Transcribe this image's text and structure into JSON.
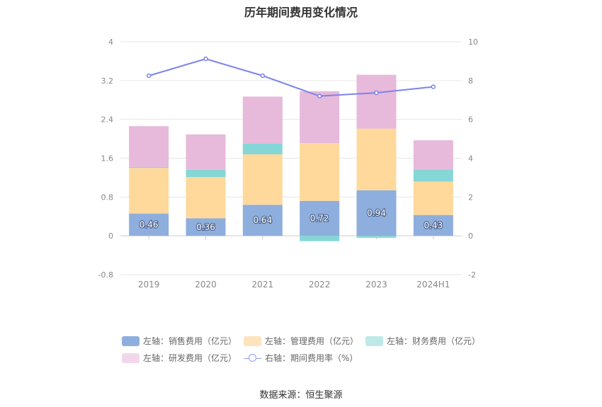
{
  "chart_data": {
    "type": "bar",
    "title": "历年期间费用变化情况",
    "categories": [
      "2019",
      "2020",
      "2021",
      "2022",
      "2023",
      "2024H1"
    ],
    "left_axis": {
      "ticks": [
        "-0.8",
        "0",
        "0.8",
        "1.6",
        "2.4",
        "3.2",
        "4"
      ],
      "ylim": [
        -0.8,
        4
      ]
    },
    "right_axis": {
      "ticks": [
        "-2",
        "0",
        "2",
        "4",
        "6",
        "8",
        "10"
      ],
      "ylim": [
        -2,
        10
      ]
    },
    "series": [
      {
        "name": "左轴：销售费用（亿元）",
        "kind": "bar",
        "color": "#8eaedd",
        "values": [
          0.46,
          0.36,
          0.64,
          0.72,
          0.94,
          0.43
        ],
        "labels": [
          "0.46",
          "0.36",
          "0.64",
          "0.72",
          "0.94",
          "0.43"
        ]
      },
      {
        "name": "左轴：管理费用（亿元）",
        "kind": "bar",
        "color": "#fed99b",
        "values": [
          0.94,
          0.85,
          1.04,
          1.19,
          1.27,
          0.69
        ]
      },
      {
        "name": "左轴：财务费用（亿元）",
        "kind": "bar",
        "color": "#85d6d7",
        "values": [
          0.02,
          0.15,
          0.22,
          -0.11,
          -0.04,
          0.25
        ]
      },
      {
        "name": "左轴：研发费用（亿元）",
        "kind": "bar",
        "color": "#e7b9da",
        "values": [
          0.84,
          0.73,
          0.97,
          1.07,
          1.11,
          0.6
        ]
      },
      {
        "name": "右轴：期间费用率（%）",
        "kind": "line",
        "color": "#7b83ea",
        "values": [
          8.25,
          9.12,
          8.25,
          7.2,
          7.37,
          7.68
        ]
      }
    ],
    "legend_position": "bottom",
    "grid": true
  },
  "footer": {
    "source": "数据来源：恒生聚源"
  }
}
